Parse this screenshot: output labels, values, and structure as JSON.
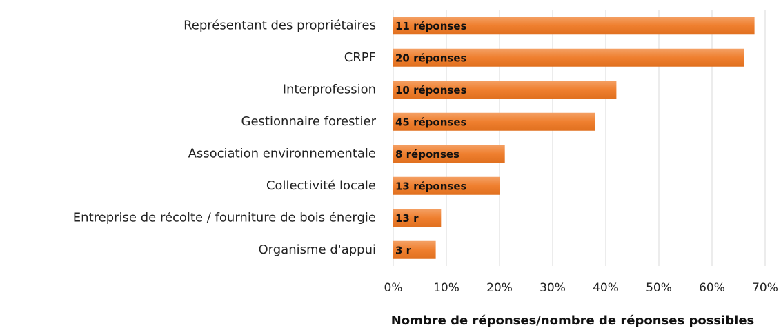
{
  "chart_data": {
    "type": "bar",
    "orientation": "horizontal",
    "categories": [
      "Représentant des propriétaires",
      "CRPF",
      "Interprofession",
      "Gestionnaire forestier",
      "Association environnementale",
      "Collectivité locale",
      "Entreprise de récolte / fourniture de bois énergie",
      "Organisme d'appui"
    ],
    "values": [
      68,
      66,
      42,
      38,
      21,
      20,
      9,
      8
    ],
    "annotations": [
      "11 réponses",
      "20 réponses",
      "10 réponses",
      "45 réponses",
      "8 réponses",
      "13 réponses",
      "13 r",
      "3 r"
    ],
    "color": "#ef7f2f",
    "xlabel": "Nombre de réponses/nombre de réponses possibles",
    "xlim": [
      0,
      70
    ],
    "xticks": [
      {
        "value": 0,
        "label": "0%"
      },
      {
        "value": 10,
        "label": "10%"
      },
      {
        "value": 20,
        "label": "20%"
      },
      {
        "value": 30,
        "label": "30%"
      },
      {
        "value": 40,
        "label": "40%"
      },
      {
        "value": 50,
        "label": "50%"
      },
      {
        "value": 60,
        "label": "60%"
      },
      {
        "value": 70,
        "label": "70%"
      }
    ],
    "grid": true
  }
}
